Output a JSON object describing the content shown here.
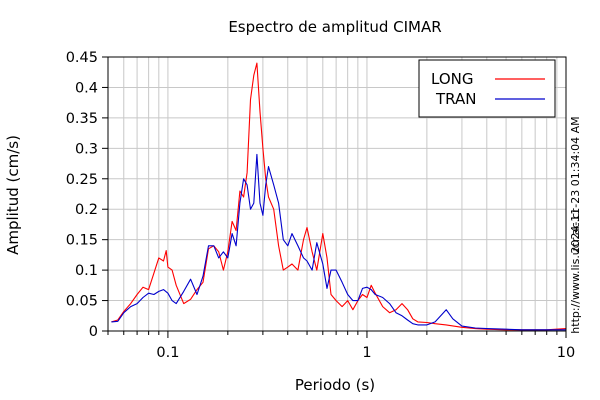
{
  "chart_data": {
    "type": "line",
    "title": "Espectro de amplitud CIMAR",
    "xlabel": "Periodo (s)",
    "ylabel": "Amplitud (cm/s)",
    "xscale": "log",
    "xlim": [
      0.05,
      10
    ],
    "ylim": [
      0,
      0.45
    ],
    "x_tick_labels": [
      "0.1",
      "1",
      "10"
    ],
    "y_tick_labels": [
      "0",
      "0.05",
      "0.1",
      "0.15",
      "0.2",
      "0.25",
      "0.3",
      "0.35",
      "0.4",
      "0.45"
    ],
    "grid": true,
    "legend_position": "top-right",
    "side_labels": [
      "2024-11-23 01:34:04 AM",
      "http://www.lis.ucr.ac.cr"
    ],
    "series": [
      {
        "name": "LONG",
        "color": "#ff0000",
        "x": [
          0.052,
          0.056,
          0.06,
          0.065,
          0.07,
          0.075,
          0.08,
          0.085,
          0.09,
          0.095,
          0.098,
          0.1,
          0.105,
          0.11,
          0.12,
          0.13,
          0.14,
          0.15,
          0.16,
          0.17,
          0.18,
          0.19,
          0.2,
          0.21,
          0.22,
          0.23,
          0.24,
          0.25,
          0.26,
          0.27,
          0.28,
          0.29,
          0.3,
          0.31,
          0.32,
          0.34,
          0.36,
          0.38,
          0.4,
          0.42,
          0.45,
          0.48,
          0.5,
          0.53,
          0.56,
          0.6,
          0.63,
          0.66,
          0.7,
          0.75,
          0.8,
          0.85,
          0.9,
          0.95,
          1.0,
          1.05,
          1.1,
          1.2,
          1.3,
          1.4,
          1.5,
          1.6,
          1.7,
          1.8,
          2.0,
          2.2,
          2.5,
          3.0,
          3.5,
          4.0,
          5.0,
          6.0,
          8.0,
          10.0
        ],
        "y": [
          0.015,
          0.018,
          0.032,
          0.045,
          0.06,
          0.072,
          0.068,
          0.095,
          0.12,
          0.115,
          0.132,
          0.105,
          0.1,
          0.075,
          0.045,
          0.052,
          0.068,
          0.08,
          0.135,
          0.14,
          0.13,
          0.1,
          0.13,
          0.18,
          0.165,
          0.23,
          0.22,
          0.26,
          0.38,
          0.42,
          0.44,
          0.36,
          0.3,
          0.25,
          0.22,
          0.2,
          0.14,
          0.1,
          0.105,
          0.11,
          0.1,
          0.15,
          0.17,
          0.13,
          0.1,
          0.16,
          0.12,
          0.06,
          0.05,
          0.04,
          0.05,
          0.035,
          0.05,
          0.06,
          0.055,
          0.075,
          0.062,
          0.04,
          0.03,
          0.035,
          0.045,
          0.035,
          0.02,
          0.015,
          0.014,
          0.012,
          0.01,
          0.006,
          0.004,
          0.003,
          0.002,
          0.002,
          0.002,
          0.004
        ]
      },
      {
        "name": "TRAN",
        "color": "#0000cc",
        "x": [
          0.052,
          0.056,
          0.06,
          0.065,
          0.07,
          0.075,
          0.08,
          0.085,
          0.09,
          0.095,
          0.1,
          0.105,
          0.11,
          0.12,
          0.13,
          0.14,
          0.15,
          0.16,
          0.17,
          0.18,
          0.19,
          0.2,
          0.21,
          0.22,
          0.23,
          0.24,
          0.25,
          0.26,
          0.27,
          0.28,
          0.29,
          0.3,
          0.31,
          0.32,
          0.34,
          0.36,
          0.38,
          0.4,
          0.42,
          0.45,
          0.48,
          0.5,
          0.53,
          0.56,
          0.6,
          0.63,
          0.66,
          0.7,
          0.75,
          0.8,
          0.85,
          0.9,
          0.95,
          1.0,
          1.05,
          1.1,
          1.2,
          1.3,
          1.4,
          1.5,
          1.6,
          1.7,
          1.8,
          2.0,
          2.2,
          2.5,
          2.7,
          3.0,
          3.5,
          4.0,
          5.0,
          6.0,
          8.0,
          10.0
        ],
        "y": [
          0.015,
          0.016,
          0.03,
          0.04,
          0.045,
          0.055,
          0.062,
          0.06,
          0.065,
          0.068,
          0.062,
          0.05,
          0.045,
          0.065,
          0.085,
          0.06,
          0.09,
          0.14,
          0.14,
          0.12,
          0.13,
          0.12,
          0.16,
          0.14,
          0.21,
          0.25,
          0.24,
          0.2,
          0.21,
          0.29,
          0.21,
          0.19,
          0.24,
          0.27,
          0.24,
          0.21,
          0.15,
          0.14,
          0.16,
          0.14,
          0.12,
          0.115,
          0.1,
          0.145,
          0.11,
          0.07,
          0.1,
          0.1,
          0.08,
          0.06,
          0.05,
          0.05,
          0.07,
          0.072,
          0.068,
          0.06,
          0.055,
          0.045,
          0.03,
          0.025,
          0.018,
          0.012,
          0.01,
          0.01,
          0.015,
          0.035,
          0.02,
          0.008,
          0.005,
          0.004,
          0.003,
          0.002,
          0.002,
          0.002
        ]
      }
    ]
  }
}
